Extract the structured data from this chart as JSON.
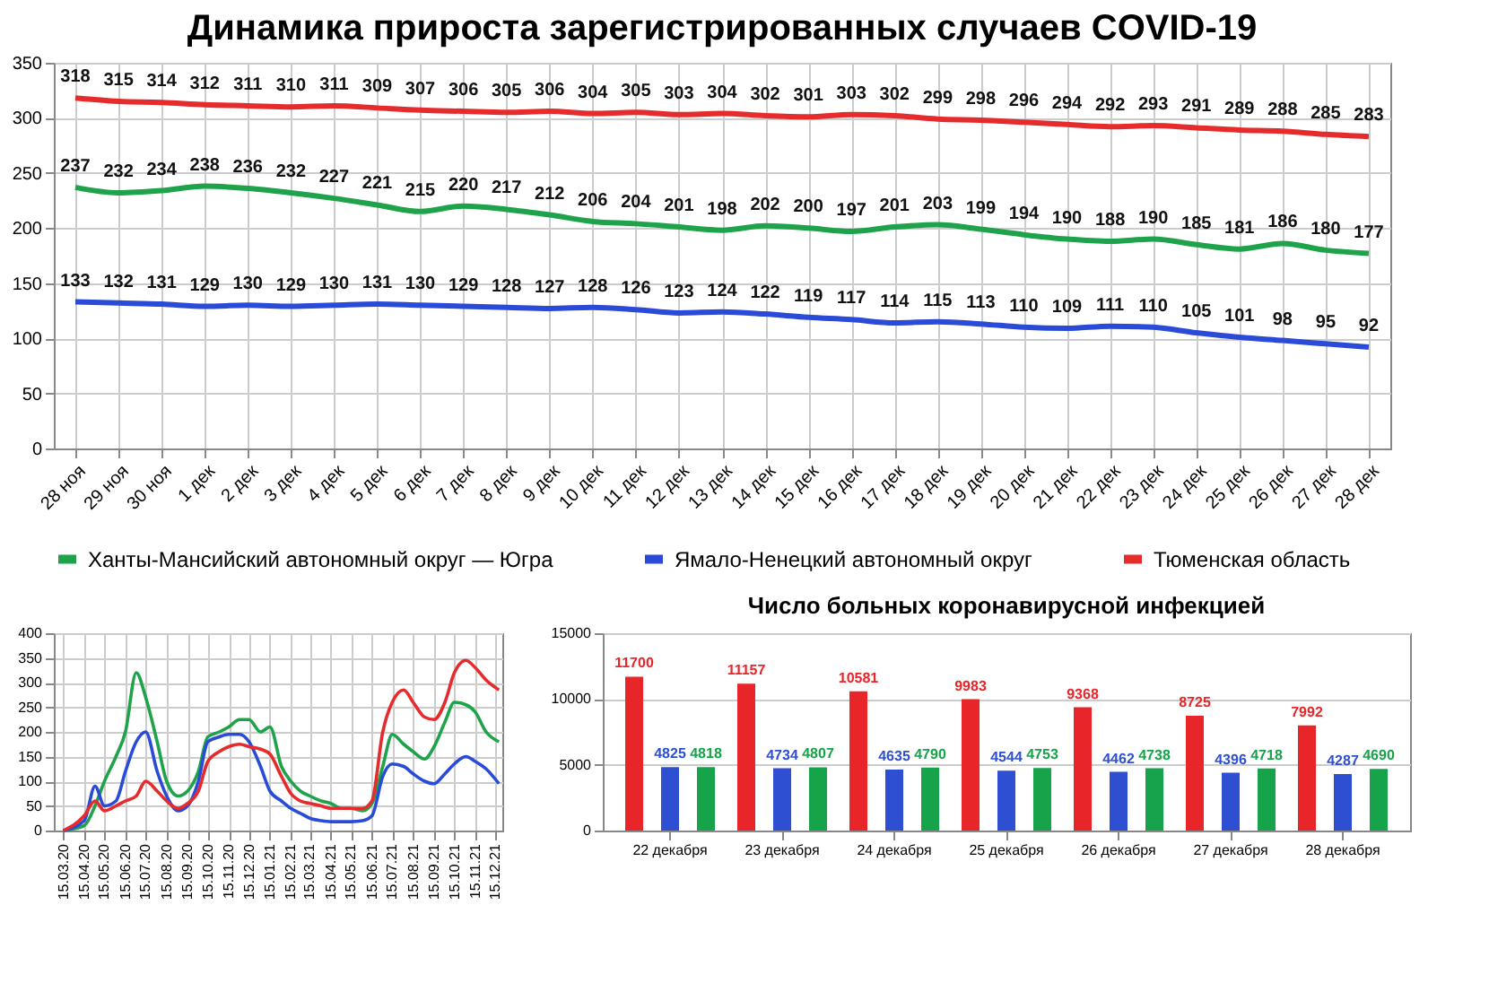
{
  "chart_data": [
    {
      "type": "line",
      "title": "Динамика прироста зарегистрированных случаев COVID-19",
      "categories": [
        "28 ноя",
        "29 ноя",
        "30 ноя",
        "1 дек",
        "2 дек",
        "3 дек",
        "4 дек",
        "5 дек",
        "6 дек",
        "7 дек",
        "8 дек",
        "9 дек",
        "10 дек",
        "11 дек",
        "12 дек",
        "13 дек",
        "14 дек",
        "15 дек",
        "16 дек",
        "17 дек",
        "18 дек",
        "19 дек",
        "20 дек",
        "21 дек",
        "22 дек",
        "23 дек",
        "24 дек",
        "25 дек",
        "26 дек",
        "27 дек",
        "28 дек"
      ],
      "series": [
        {
          "name": "Ханты-Мансийский автономный округ — Югра",
          "color": "#1fa34a",
          "values": [
            237,
            232,
            234,
            238,
            236,
            232,
            227,
            221,
            215,
            220,
            217,
            212,
            206,
            204,
            201,
            198,
            202,
            200,
            197,
            201,
            203,
            199,
            194,
            190,
            188,
            190,
            185,
            181,
            186,
            180,
            177
          ]
        },
        {
          "name": "Ямало-Ненецкий автономный округ",
          "color": "#2a4bd7",
          "values": [
            133,
            132,
            131,
            129,
            130,
            129,
            130,
            131,
            130,
            129,
            128,
            127,
            128,
            126,
            123,
            124,
            122,
            119,
            117,
            114,
            115,
            113,
            110,
            109,
            111,
            110,
            105,
            101,
            98,
            95,
            92
          ]
        },
        {
          "name": "Тюменская область",
          "color": "#e52b2b",
          "values": [
            318,
            315,
            314,
            312,
            311,
            310,
            311,
            309,
            307,
            306,
            305,
            306,
            304,
            305,
            303,
            304,
            302,
            301,
            303,
            302,
            299,
            298,
            296,
            294,
            292,
            293,
            291,
            289,
            288,
            285,
            283
          ]
        }
      ],
      "ylim": [
        0,
        350
      ],
      "yticks": [
        0,
        50,
        100,
        150,
        200,
        250,
        300,
        350
      ],
      "grid": true,
      "data_labels": true,
      "legend": "bottom"
    },
    {
      "type": "line",
      "x": [
        "2020-03-15",
        "2020-04-15",
        "2020-05-01",
        "2020-05-15",
        "2020-06-01",
        "2020-06-15",
        "2020-07-01",
        "2020-07-15",
        "2020-08-01",
        "2020-08-15",
        "2020-09-01",
        "2020-09-15",
        "2020-10-01",
        "2020-10-15",
        "2020-11-01",
        "2020-11-15",
        "2020-12-01",
        "2020-12-15",
        "2021-01-01",
        "2021-01-15",
        "2021-02-01",
        "2021-02-15",
        "2021-03-01",
        "2021-03-15",
        "2021-04-01",
        "2021-04-15",
        "2021-05-01",
        "2021-05-15",
        "2021-06-01",
        "2021-06-15",
        "2021-07-01",
        "2021-07-15",
        "2021-08-01",
        "2021-08-15",
        "2021-09-01",
        "2021-09-15",
        "2021-10-01",
        "2021-10-15",
        "2021-11-01",
        "2021-11-15",
        "2021-12-01",
        "2021-12-20"
      ],
      "series": [
        {
          "color": "#1fa34a",
          "values": [
            0,
            10,
            50,
            100,
            150,
            200,
            320,
            270,
            180,
            100,
            70,
            80,
            120,
            190,
            200,
            210,
            225,
            225,
            200,
            210,
            130,
            100,
            80,
            70,
            60,
            55,
            45,
            45,
            40,
            55,
            130,
            195,
            175,
            160,
            145,
            170,
            220,
            260,
            255,
            240,
            200,
            180
          ]
        },
        {
          "color": "#2a4bd7",
          "values": [
            0,
            20,
            90,
            50,
            60,
            120,
            180,
            200,
            120,
            70,
            40,
            50,
            100,
            180,
            190,
            195,
            195,
            180,
            130,
            80,
            60,
            45,
            35,
            25,
            20,
            18,
            18,
            18,
            20,
            30,
            110,
            135,
            130,
            115,
            100,
            95,
            115,
            135,
            150,
            140,
            125,
            95
          ]
        },
        {
          "color": "#e52b2b",
          "values": [
            0,
            30,
            60,
            40,
            50,
            60,
            70,
            100,
            80,
            60,
            45,
            55,
            80,
            140,
            160,
            170,
            175,
            170,
            165,
            155,
            110,
            75,
            60,
            55,
            50,
            45,
            45,
            45,
            45,
            60,
            200,
            260,
            285,
            260,
            230,
            225,
            260,
            320,
            345,
            330,
            305,
            285
          ]
        }
      ],
      "xlim": [
        "2020-03-01",
        "2021-12-25"
      ],
      "xticks": [
        {
          "value": "2020-03-15",
          "label": "15.03.20"
        },
        {
          "value": "2020-04-15",
          "label": "15.04.20"
        },
        {
          "value": "2020-05-15",
          "label": "15.05.20"
        },
        {
          "value": "2020-06-15",
          "label": "15.06.20"
        },
        {
          "value": "2020-07-15",
          "label": "15.07.20"
        },
        {
          "value": "2020-08-15",
          "label": "15.08.20"
        },
        {
          "value": "2020-09-15",
          "label": "15.09.20"
        },
        {
          "value": "2020-10-15",
          "label": "15.10.20"
        },
        {
          "value": "2020-11-15",
          "label": "15.11.20"
        },
        {
          "value": "2020-12-15",
          "label": "15.12.20"
        },
        {
          "value": "2021-01-15",
          "label": "15.01.21"
        },
        {
          "value": "2021-02-15",
          "label": "15.02.21"
        },
        {
          "value": "2021-03-15",
          "label": "15.03.21"
        },
        {
          "value": "2021-04-15",
          "label": "15.04.21"
        },
        {
          "value": "2021-05-15",
          "label": "15.05.21"
        },
        {
          "value": "2021-06-15",
          "label": "15.06.21"
        },
        {
          "value": "2021-07-15",
          "label": "15.07.21"
        },
        {
          "value": "2021-08-15",
          "label": "15.08.21"
        },
        {
          "value": "2021-09-15",
          "label": "15.09.21"
        },
        {
          "value": "2021-10-15",
          "label": "15.10.21"
        },
        {
          "value": "2021-11-15",
          "label": "15.11.21"
        },
        {
          "value": "2021-12-15",
          "label": "15.12.21"
        }
      ],
      "ylim": [
        0,
        400
      ],
      "yticks": [
        0,
        50,
        100,
        150,
        200,
        250,
        300,
        350,
        400
      ],
      "grid": true
    },
    {
      "type": "bar",
      "title": "Число больных коронавирусной  инфекцией",
      "categories": [
        "22 декабря",
        "23 декабря",
        "24 декабря",
        "25 декабря",
        "26 декабря",
        "27 декабря",
        "28 декабря"
      ],
      "series": [
        {
          "color": "#e8262a",
          "values": [
            11700,
            11157,
            10581,
            9983,
            9368,
            8725,
            7992
          ]
        },
        {
          "color": "#2e4fd1",
          "values": [
            4825,
            4734,
            4635,
            4544,
            4462,
            4396,
            4287
          ]
        },
        {
          "color": "#17a34a",
          "values": [
            4818,
            4807,
            4790,
            4753,
            4738,
            4718,
            4690
          ]
        }
      ],
      "ylim": [
        0,
        15000
      ],
      "yticks": [
        0,
        5000,
        10000,
        15000
      ],
      "grid": "y",
      "data_labels": true
    }
  ]
}
